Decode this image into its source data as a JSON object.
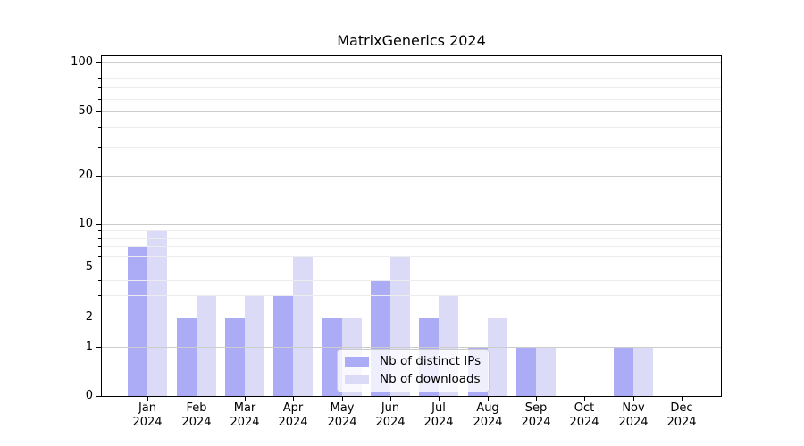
{
  "title": "MatrixGenerics 2024",
  "legend": {
    "items": [
      {
        "label": "Nb of distinct IPs",
        "swatch_color": "#abacf5"
      },
      {
        "label": "Nb of downloads",
        "swatch_color": "#dbdbf8"
      }
    ]
  },
  "chart_data": {
    "type": "bar",
    "title": "MatrixGenerics 2024",
    "categories": [
      "Jan 2024",
      "Feb 2024",
      "Mar 2024",
      "Apr 2024",
      "May 2024",
      "Jun 2024",
      "Jul 2024",
      "Aug 2024",
      "Sep 2024",
      "Oct 2024",
      "Nov 2024",
      "Dec 2024"
    ],
    "series": [
      {
        "name": "Nb of distinct IPs",
        "color": "#abacf5",
        "values": [
          7,
          2,
          2,
          3,
          2,
          4,
          2,
          1,
          1,
          0,
          1,
          0
        ]
      },
      {
        "name": "Nb of downloads",
        "color": "#dbdbf8",
        "values": [
          9,
          3,
          3,
          6,
          2,
          6,
          3,
          2,
          1,
          0,
          1,
          0
        ]
      }
    ],
    "xlabel": "",
    "ylabel": "",
    "yscale": "log-like (0,1,2,5,10,20,50,100)",
    "ylim": [
      0,
      100
    ],
    "y_major_ticks": [
      0,
      1,
      2,
      5,
      10,
      20,
      50,
      100
    ],
    "y_minor_ticks": [
      3,
      4,
      6,
      7,
      8,
      9,
      30,
      40,
      60,
      70,
      80,
      90
    ],
    "grid": "on",
    "legend_position": "inside lower-center"
  }
}
